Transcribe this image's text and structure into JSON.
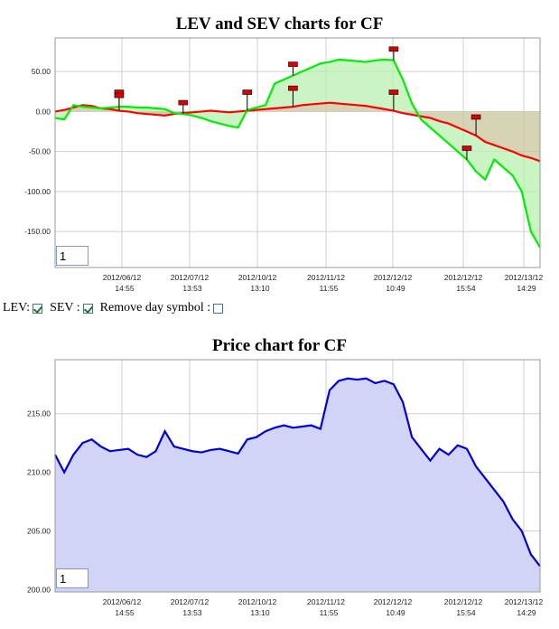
{
  "chart_data": [
    {
      "type": "line",
      "title": "LEV and SEV charts for CF",
      "x_ticks": [
        "2012/06/12|14:55",
        "2012/07/12|13:53",
        "2012/10/12|13:10",
        "2012/11/12|11:55",
        "2012/12/12|10:49",
        "2012/12/12|15:54",
        "2012/13/12|14:29"
      ],
      "y_ticks": [
        "50.00",
        "0.00",
        "-50.00",
        "-100.00",
        "-150.00"
      ],
      "ylim": [
        -195,
        92
      ],
      "grid": true,
      "n_points": 54,
      "series": [
        {
          "color": "#ff0000",
          "values": [
            0,
            2,
            5,
            8,
            7,
            4,
            3,
            1,
            0,
            -2,
            -3,
            -4,
            -5,
            -3,
            -2,
            -1,
            0,
            1,
            0,
            -1,
            0,
            1,
            2,
            3,
            4,
            5,
            6,
            8,
            9,
            10,
            11,
            10,
            9,
            8,
            7,
            5,
            3,
            1,
            -2,
            -4,
            -6,
            -8,
            -12,
            -15,
            -20,
            -25,
            -30,
            -38,
            -42,
            -46,
            -50,
            -55,
            -58,
            -62
          ]
        },
        {
          "color": "#00ee00",
          "values": [
            -8,
            -10,
            8,
            6,
            5,
            4,
            5,
            6,
            6,
            5,
            5,
            4,
            3,
            -2,
            -3,
            -5,
            -8,
            -12,
            -15,
            -18,
            -20,
            2,
            5,
            8,
            35,
            40,
            45,
            50,
            55,
            60,
            62,
            65,
            64,
            63,
            62,
            64,
            65,
            64,
            40,
            10,
            -10,
            -20,
            -30,
            -40,
            -50,
            -60,
            -75,
            -85,
            -60,
            -70,
            -80,
            -100,
            -150,
            -170
          ]
        }
      ],
      "fill": {
        "color": "#c9c49c"
      }
    },
    {
      "type": "area",
      "title": "Price chart for CF",
      "x_ticks": [
        "2012/06/12|14:55",
        "2012/07/12|13:53",
        "2012/10/12|13:10",
        "2012/11/12|11:55",
        "2012/12/12|10:49",
        "2012/12/12|15:54",
        "2012/13/12|14:29"
      ],
      "y_ticks": [
        "215.00",
        "210.00",
        "205.00",
        "200.00"
      ],
      "ylim": [
        199.8,
        219.6
      ],
      "grid": true,
      "n_points": 54,
      "series": [
        {
          "color": "#0000dd",
          "values": [
            211.5,
            210.0,
            211.5,
            212.5,
            212.8,
            212.2,
            211.8,
            211.9,
            212.0,
            211.5,
            211.3,
            211.8,
            213.5,
            212.2,
            212.0,
            211.8,
            211.7,
            211.9,
            212.0,
            211.8,
            211.6,
            212.8,
            213.0,
            213.5,
            213.8,
            214.0,
            213.8,
            213.9,
            214.0,
            213.7,
            217.0,
            217.8,
            218.0,
            217.9,
            218.0,
            217.6,
            217.8,
            217.5,
            216.0,
            213.0,
            212.0,
            211.0,
            212.0,
            211.5,
            212.3,
            212.0,
            210.5,
            209.5,
            208.5,
            207.5,
            206.0,
            205.0,
            203.0,
            202.0
          ]
        }
      ],
      "fill": {
        "color": "#d2d4f7"
      }
    }
  ],
  "markers": {
    "color": "#dd0000",
    "count": 10
  },
  "day_inputs": [
    "1",
    "1"
  ],
  "controls": {
    "lev_label": "LEV:",
    "sev_label": "SEV :",
    "remove_label": "Remove day symbol :",
    "lev_checked": true,
    "sev_checked": true,
    "remove_checked": false
  }
}
